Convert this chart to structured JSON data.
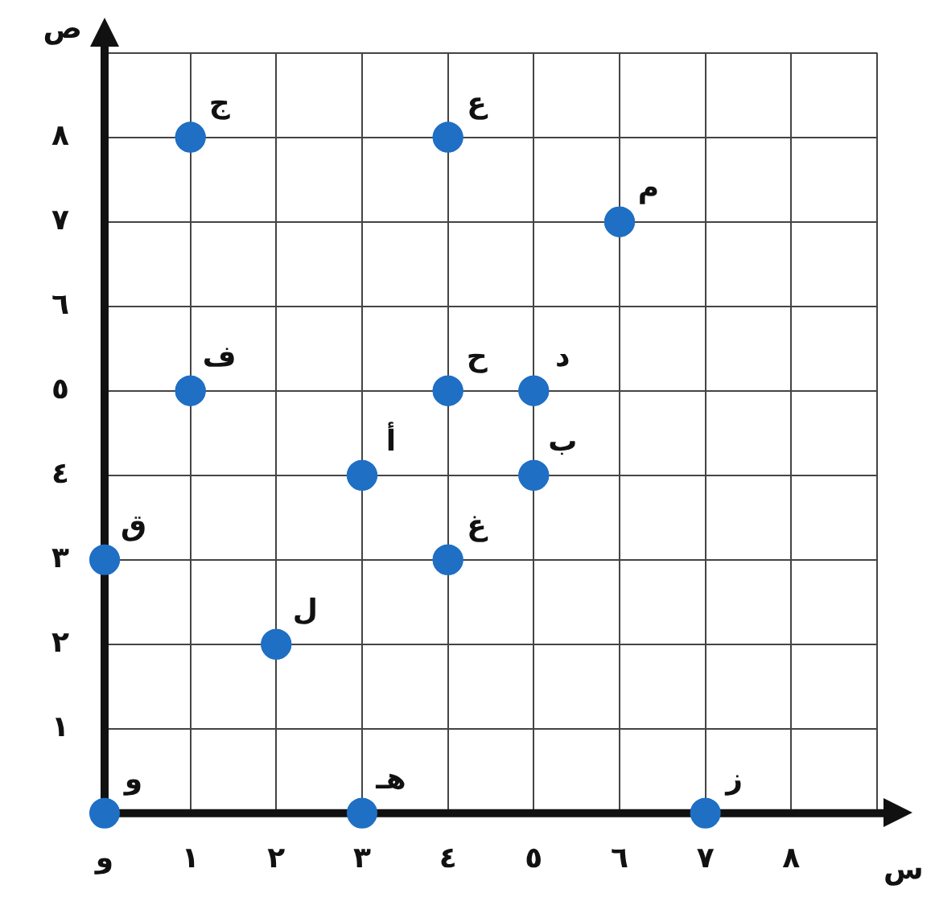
{
  "chart_data": {
    "type": "scatter",
    "xlabel": "س",
    "ylabel": "ص",
    "x": [
      1,
      4,
      6,
      1,
      4,
      5,
      3,
      5,
      0,
      4,
      2,
      0,
      3,
      7
    ],
    "series": [
      {
        "color": "#1f6fc5",
        "values": [
          8,
          8,
          7,
          5,
          5,
          5,
          4,
          4,
          3,
          3,
          2,
          0,
          0,
          0
        ]
      }
    ],
    "annotations": [
      {
        "text": "ج",
        "x": 1,
        "y": 8
      },
      {
        "text": "ع",
        "x": 4,
        "y": 8
      },
      {
        "text": "م",
        "x": 6,
        "y": 7
      },
      {
        "text": "ف",
        "x": 1,
        "y": 5
      },
      {
        "text": "ح",
        "x": 4,
        "y": 5
      },
      {
        "text": "د",
        "x": 5,
        "y": 5
      },
      {
        "text": "أ",
        "x": 3,
        "y": 4
      },
      {
        "text": "ب",
        "x": 5,
        "y": 4
      },
      {
        "text": "ق",
        "x": 0,
        "y": 3
      },
      {
        "text": "غ",
        "x": 4,
        "y": 3
      },
      {
        "text": "ل",
        "x": 2,
        "y": 2
      },
      {
        "text": "و",
        "x": 0,
        "y": 0
      },
      {
        "text": "هـ",
        "x": 3,
        "y": 0
      },
      {
        "text": "ز",
        "x": 7,
        "y": 0
      }
    ],
    "xlim": [
      0,
      9
    ],
    "ylim": [
      0,
      9
    ],
    "xticks": [
      {
        "value": 0,
        "label": "و"
      },
      {
        "value": 1,
        "label": "١"
      },
      {
        "value": 2,
        "label": "٢"
      },
      {
        "value": 3,
        "label": "٣"
      },
      {
        "value": 4,
        "label": "٤"
      },
      {
        "value": 5,
        "label": "٥"
      },
      {
        "value": 6,
        "label": "٦"
      },
      {
        "value": 7,
        "label": "٧"
      },
      {
        "value": 8,
        "label": "٨"
      },
      {
        "value": 9,
        "label": null
      }
    ],
    "yticks": [
      {
        "value": 0,
        "label": null
      },
      {
        "value": 1,
        "label": "١"
      },
      {
        "value": 2,
        "label": "٢"
      },
      {
        "value": 3,
        "label": "٣"
      },
      {
        "value": 4,
        "label": "٤"
      },
      {
        "value": 5,
        "label": "٥"
      },
      {
        "value": 6,
        "label": "٦"
      },
      {
        "value": 7,
        "label": "٧"
      },
      {
        "value": 8,
        "label": "٨"
      },
      {
        "value": 9,
        "label": null
      }
    ],
    "grid": true,
    "marker": "circle"
  }
}
